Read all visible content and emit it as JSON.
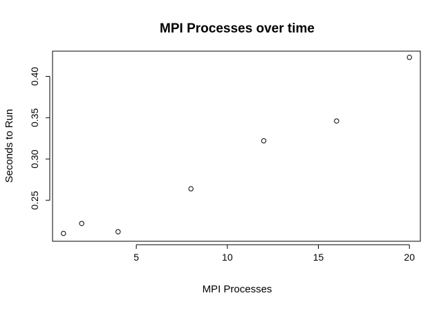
{
  "chart_data": {
    "type": "scatter",
    "title": "MPI Processes over time",
    "xlabel": "MPI Processes",
    "ylabel": "Seconds to Run",
    "xlim": [
      0.4,
      20.6
    ],
    "ylim": [
      0.2005,
      0.4305
    ],
    "x_ticks": [
      5,
      10,
      15,
      20
    ],
    "y_ticks": [
      0.25,
      0.3,
      0.35,
      0.4
    ],
    "x_tick_labels": [
      "5",
      "10",
      "15",
      "20"
    ],
    "y_tick_labels": [
      "0.25",
      "0.30",
      "0.35",
      "0.40"
    ],
    "points": [
      {
        "x": 1,
        "y": 0.21
      },
      {
        "x": 2,
        "y": 0.222
      },
      {
        "x": 4,
        "y": 0.212
      },
      {
        "x": 8,
        "y": 0.264
      },
      {
        "x": 12,
        "y": 0.322
      },
      {
        "x": 16,
        "y": 0.346
      },
      {
        "x": 20,
        "y": 0.423
      }
    ],
    "marker": "open-circle",
    "grid": false,
    "legend": "none",
    "colors": {
      "point": "#000000",
      "axis": "#000000",
      "background": "#ffffff"
    }
  }
}
